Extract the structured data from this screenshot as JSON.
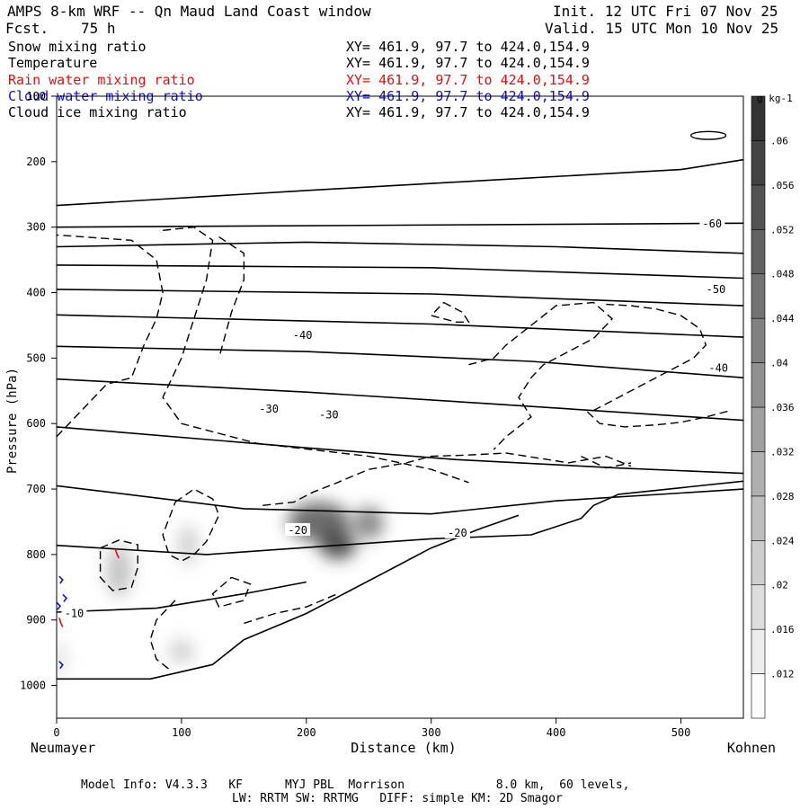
{
  "header": {
    "title": "AMPS 8-km WRF -- Qn Maud Land Coast window",
    "fcst_label": "Fcst.",
    "fcst_value": "75 h",
    "init": "Init. 12 UTC Fri 07 Nov 25",
    "valid": "Valid. 15 UTC Mon 10 Nov 25"
  },
  "fields": [
    {
      "name": "Snow mixing ratio",
      "xy": "XY= 461.9, 97.7 to 424.0,154.9",
      "color": "#000000"
    },
    {
      "name": "Temperature",
      "xy": "XY= 461.9, 97.7 to 424.0,154.9",
      "color": "#000000"
    },
    {
      "name": "Rain water mixing ratio",
      "xy": "XY= 461.9, 97.7 to 424.0,154.9",
      "color": "#e01010"
    },
    {
      "name": "Cloud water mixing ratio",
      "xy": "XY= 461.9, 97.7 to 424.0,154.9",
      "color": "#1010d0"
    },
    {
      "name": "Cloud ice mixing ratio",
      "xy": "XY= 461.9, 97.7 to 424.0,154.9",
      "color": "#000000"
    }
  ],
  "footer": {
    "line1": "Model Info: V4.3.3   KF      MYJ PBL  Morrison             8.0 km,  60 levels,",
    "line2": "LW: RRTM SW: RRTMG   DIFF: simple KM: 2D Smagor"
  },
  "chart_data": {
    "type": "contour",
    "xlabel": "Distance (km)",
    "ylabel": "Pressure (hPa)",
    "x_left_label": "Neumayer",
    "x_right_label": "Kohnen",
    "xlim": [
      0,
      550
    ],
    "ylim": [
      1050,
      100
    ],
    "x_ticks": [
      0,
      100,
      200,
      300,
      400,
      500
    ],
    "y_ticks": [
      1000,
      900,
      800,
      700,
      600,
      500,
      400,
      300,
      200,
      100
    ],
    "colorbar": {
      "unit": "g kg-1",
      "levels": [
        0.012,
        0.016,
        0.02,
        0.024,
        0.028,
        0.032,
        0.036,
        0.04,
        0.044,
        0.048,
        0.052,
        0.056,
        0.06
      ],
      "labels": [
        ".012",
        ".016",
        ".02",
        ".024",
        ".028",
        ".032",
        ".036",
        ".04",
        ".044",
        ".048",
        ".052",
        ".056",
        ".06"
      ]
    },
    "temperature_labels": [
      {
        "text": "-60",
        "x": 525,
        "p": 295
      },
      {
        "text": "-50",
        "x": 528,
        "p": 395
      },
      {
        "text": "-40",
        "x": 197,
        "p": 465
      },
      {
        "text": "-40",
        "x": 530,
        "p": 515
      },
      {
        "text": "-30",
        "x": 170,
        "p": 578
      },
      {
        "text": "-30",
        "x": 218,
        "p": 587
      },
      {
        "text": "-20",
        "x": 193,
        "p": 763
      },
      {
        "text": "-20",
        "x": 321,
        "p": 767
      },
      {
        "text": "-10",
        "x": 14,
        "p": 890
      }
    ],
    "isotherms": [
      [
        [
          0,
          267
        ],
        [
          200,
          244
        ],
        [
          350,
          228
        ],
        [
          500,
          212
        ],
        [
          550,
          197
        ]
      ],
      [
        [
          0,
          300
        ],
        [
          550,
          294
        ]
      ],
      [
        [
          0,
          330
        ],
        [
          200,
          323
        ],
        [
          400,
          330
        ],
        [
          550,
          340
        ]
      ],
      [
        [
          0,
          358
        ],
        [
          300,
          362
        ],
        [
          550,
          378
        ]
      ],
      [
        [
          0,
          395
        ],
        [
          300,
          402
        ],
        [
          550,
          420
        ]
      ],
      [
        [
          0,
          434
        ],
        [
          300,
          448
        ],
        [
          550,
          468
        ]
      ],
      [
        [
          0,
          482
        ],
        [
          200,
          490
        ],
        [
          380,
          505
        ],
        [
          550,
          530
        ]
      ],
      [
        [
          0,
          532
        ],
        [
          200,
          552
        ],
        [
          350,
          570
        ],
        [
          550,
          595
        ]
      ],
      [
        [
          0,
          605
        ],
        [
          200,
          637
        ],
        [
          320,
          655
        ],
        [
          450,
          668
        ],
        [
          550,
          676
        ]
      ],
      [
        [
          0,
          695
        ],
        [
          150,
          730
        ],
        [
          300,
          738
        ],
        [
          400,
          718
        ],
        [
          550,
          700
        ]
      ],
      [
        [
          0,
          786
        ],
        [
          120,
          800
        ],
        [
          300,
          776
        ],
        [
          380,
          770
        ],
        [
          420,
          745
        ],
        [
          430,
          725
        ],
        [
          450,
          708
        ],
        [
          550,
          688
        ]
      ],
      [
        [
          0,
          888
        ],
        [
          80,
          882
        ],
        [
          150,
          860
        ],
        [
          200,
          842
        ]
      ],
      [
        [
          0,
          990
        ],
        [
          75,
          990
        ],
        [
          125,
          968
        ],
        [
          150,
          930
        ],
        [
          200,
          890
        ],
        [
          270,
          820
        ],
        [
          300,
          790
        ],
        [
          320,
          775
        ],
        [
          340,
          760
        ],
        [
          370,
          740
        ]
      ]
    ],
    "snow_blobs": [
      {
        "x": 50,
        "p": 825,
        "rx": 10,
        "rp": 40,
        "value": 0.024
      },
      {
        "x": 105,
        "p": 785,
        "rx": 8,
        "rp": 30,
        "value": 0.02
      },
      {
        "x": 210,
        "p": 750,
        "rx": 25,
        "rp": 30,
        "value": 0.048
      },
      {
        "x": 225,
        "p": 785,
        "rx": 15,
        "rp": 22,
        "value": 0.056
      },
      {
        "x": 250,
        "p": 752,
        "rx": 12,
        "rp": 25,
        "value": 0.04
      },
      {
        "x": 100,
        "p": 948,
        "rx": 10,
        "rp": 18,
        "value": 0.02
      },
      {
        "x": 2,
        "p": 960,
        "rx": 5,
        "rp": 30,
        "value": 0.016
      }
    ],
    "ice_contours": [
      [
        [
          0,
          620
        ],
        [
          20,
          580
        ],
        [
          40,
          540
        ],
        [
          60,
          530
        ],
        [
          70,
          480
        ],
        [
          80,
          440
        ],
        [
          85,
          400
        ],
        [
          80,
          350
        ],
        [
          60,
          320
        ],
        [
          0,
          312
        ]
      ],
      [
        [
          85,
          305
        ],
        [
          110,
          300
        ],
        [
          125,
          320
        ],
        [
          120,
          380
        ],
        [
          110,
          440
        ],
        [
          100,
          500
        ],
        [
          85,
          560
        ],
        [
          100,
          600
        ],
        [
          160,
          630
        ],
        [
          250,
          650
        ],
        [
          300,
          670
        ],
        [
          330,
          690
        ]
      ],
      [
        [
          130,
          315
        ],
        [
          150,
          340
        ],
        [
          150,
          380
        ],
        [
          140,
          430
        ],
        [
          130,
          500
        ]
      ],
      [
        [
          35,
          790
        ],
        [
          50,
          778
        ],
        [
          65,
          785
        ],
        [
          65,
          820
        ],
        [
          60,
          850
        ],
        [
          45,
          855
        ],
        [
          35,
          835
        ],
        [
          35,
          790
        ]
      ],
      [
        [
          95,
          720
        ],
        [
          110,
          700
        ],
        [
          125,
          715
        ],
        [
          130,
          740
        ],
        [
          120,
          780
        ],
        [
          110,
          800
        ],
        [
          100,
          810
        ],
        [
          90,
          800
        ],
        [
          85,
          770
        ],
        [
          95,
          720
        ]
      ],
      [
        [
          165,
          725
        ],
        [
          190,
          720
        ],
        [
          205,
          705
        ],
        [
          225,
          690
        ],
        [
          250,
          670
        ],
        [
          280,
          660
        ],
        [
          300,
          650
        ],
        [
          330,
          648
        ],
        [
          360,
          645
        ],
        [
          410,
          660
        ],
        [
          440,
          650
        ],
        [
          460,
          665
        ]
      ],
      [
        [
          420,
          650
        ],
        [
          440,
          668
        ],
        [
          460,
          660
        ]
      ],
      [
        [
          310,
          415
        ],
        [
          325,
          430
        ],
        [
          330,
          445
        ],
        [
          320,
          445
        ],
        [
          300,
          435
        ],
        [
          310,
          415
        ]
      ],
      [
        [
          330,
          510
        ],
        [
          350,
          500
        ],
        [
          360,
          480
        ],
        [
          380,
          450
        ],
        [
          400,
          420
        ],
        [
          430,
          415
        ],
        [
          445,
          440
        ],
        [
          430,
          470
        ],
        [
          410,
          490
        ],
        [
          390,
          510
        ],
        [
          380,
          530
        ],
        [
          370,
          560
        ],
        [
          380,
          590
        ],
        [
          360,
          620
        ],
        [
          350,
          640
        ]
      ],
      [
        [
          430,
          580
        ],
        [
          450,
          560
        ],
        [
          470,
          540
        ],
        [
          490,
          520
        ],
        [
          510,
          500
        ],
        [
          520,
          480
        ],
        [
          515,
          455
        ],
        [
          500,
          435
        ],
        [
          480,
          425
        ],
        [
          460,
          420
        ],
        [
          440,
          418
        ]
      ],
      [
        [
          425,
          582
        ],
        [
          435,
          600
        ],
        [
          455,
          605
        ],
        [
          480,
          602
        ],
        [
          500,
          598
        ],
        [
          520,
          590
        ],
        [
          540,
          580
        ]
      ],
      [
        [
          95,
          870
        ],
        [
          80,
          900
        ],
        [
          75,
          930
        ],
        [
          80,
          960
        ],
        [
          90,
          975
        ]
      ],
      [
        [
          140,
          835
        ],
        [
          155,
          845
        ],
        [
          150,
          870
        ],
        [
          130,
          880
        ],
        [
          125,
          860
        ],
        [
          140,
          835
        ]
      ],
      [
        [
          150,
          905
        ],
        [
          175,
          890
        ],
        [
          200,
          880
        ],
        [
          225,
          860
        ]
      ]
    ],
    "ice_small_oval": {
      "x": 522,
      "p": 160,
      "rx": 14,
      "rp": 6
    },
    "rain_marks": [
      {
        "x": 47,
        "p": 800
      },
      {
        "x": 2,
        "p": 905
      }
    ],
    "cloud_water_marks": [
      {
        "x": 2,
        "p": 840
      },
      {
        "x": 5,
        "p": 868
      },
      {
        "x": 0,
        "p": 880
      },
      {
        "x": 2,
        "p": 970
      }
    ]
  }
}
